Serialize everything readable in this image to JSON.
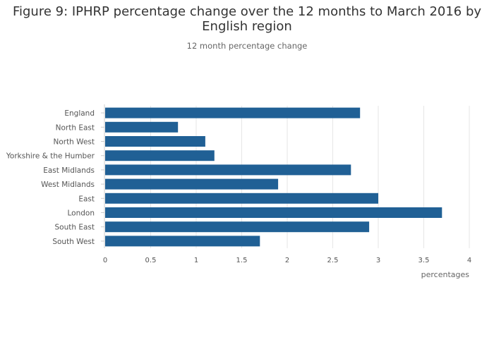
{
  "chart_data": {
    "type": "bar",
    "orientation": "horizontal",
    "title": "Figure 9: IPHRP percentage change over the 12 months to March 2016 by English region",
    "subtitle": "12 month percentage change",
    "categories": [
      "England",
      "North East",
      "North West",
      "Yorkshire & the Humber",
      "East Midlands",
      "West Midlands",
      "East",
      "London",
      "South East",
      "South West"
    ],
    "values": [
      2.8,
      0.8,
      1.1,
      1.2,
      2.7,
      1.9,
      3.0,
      3.7,
      2.9,
      1.7
    ],
    "xlabel": "percentages",
    "ylabel": "",
    "xlim": [
      0,
      4
    ],
    "xticks": [
      "0",
      "0.5",
      "1",
      "1.5",
      "2",
      "2.5",
      "3",
      "3.5",
      "4"
    ],
    "grid": true,
    "bar_color": "#206095"
  }
}
